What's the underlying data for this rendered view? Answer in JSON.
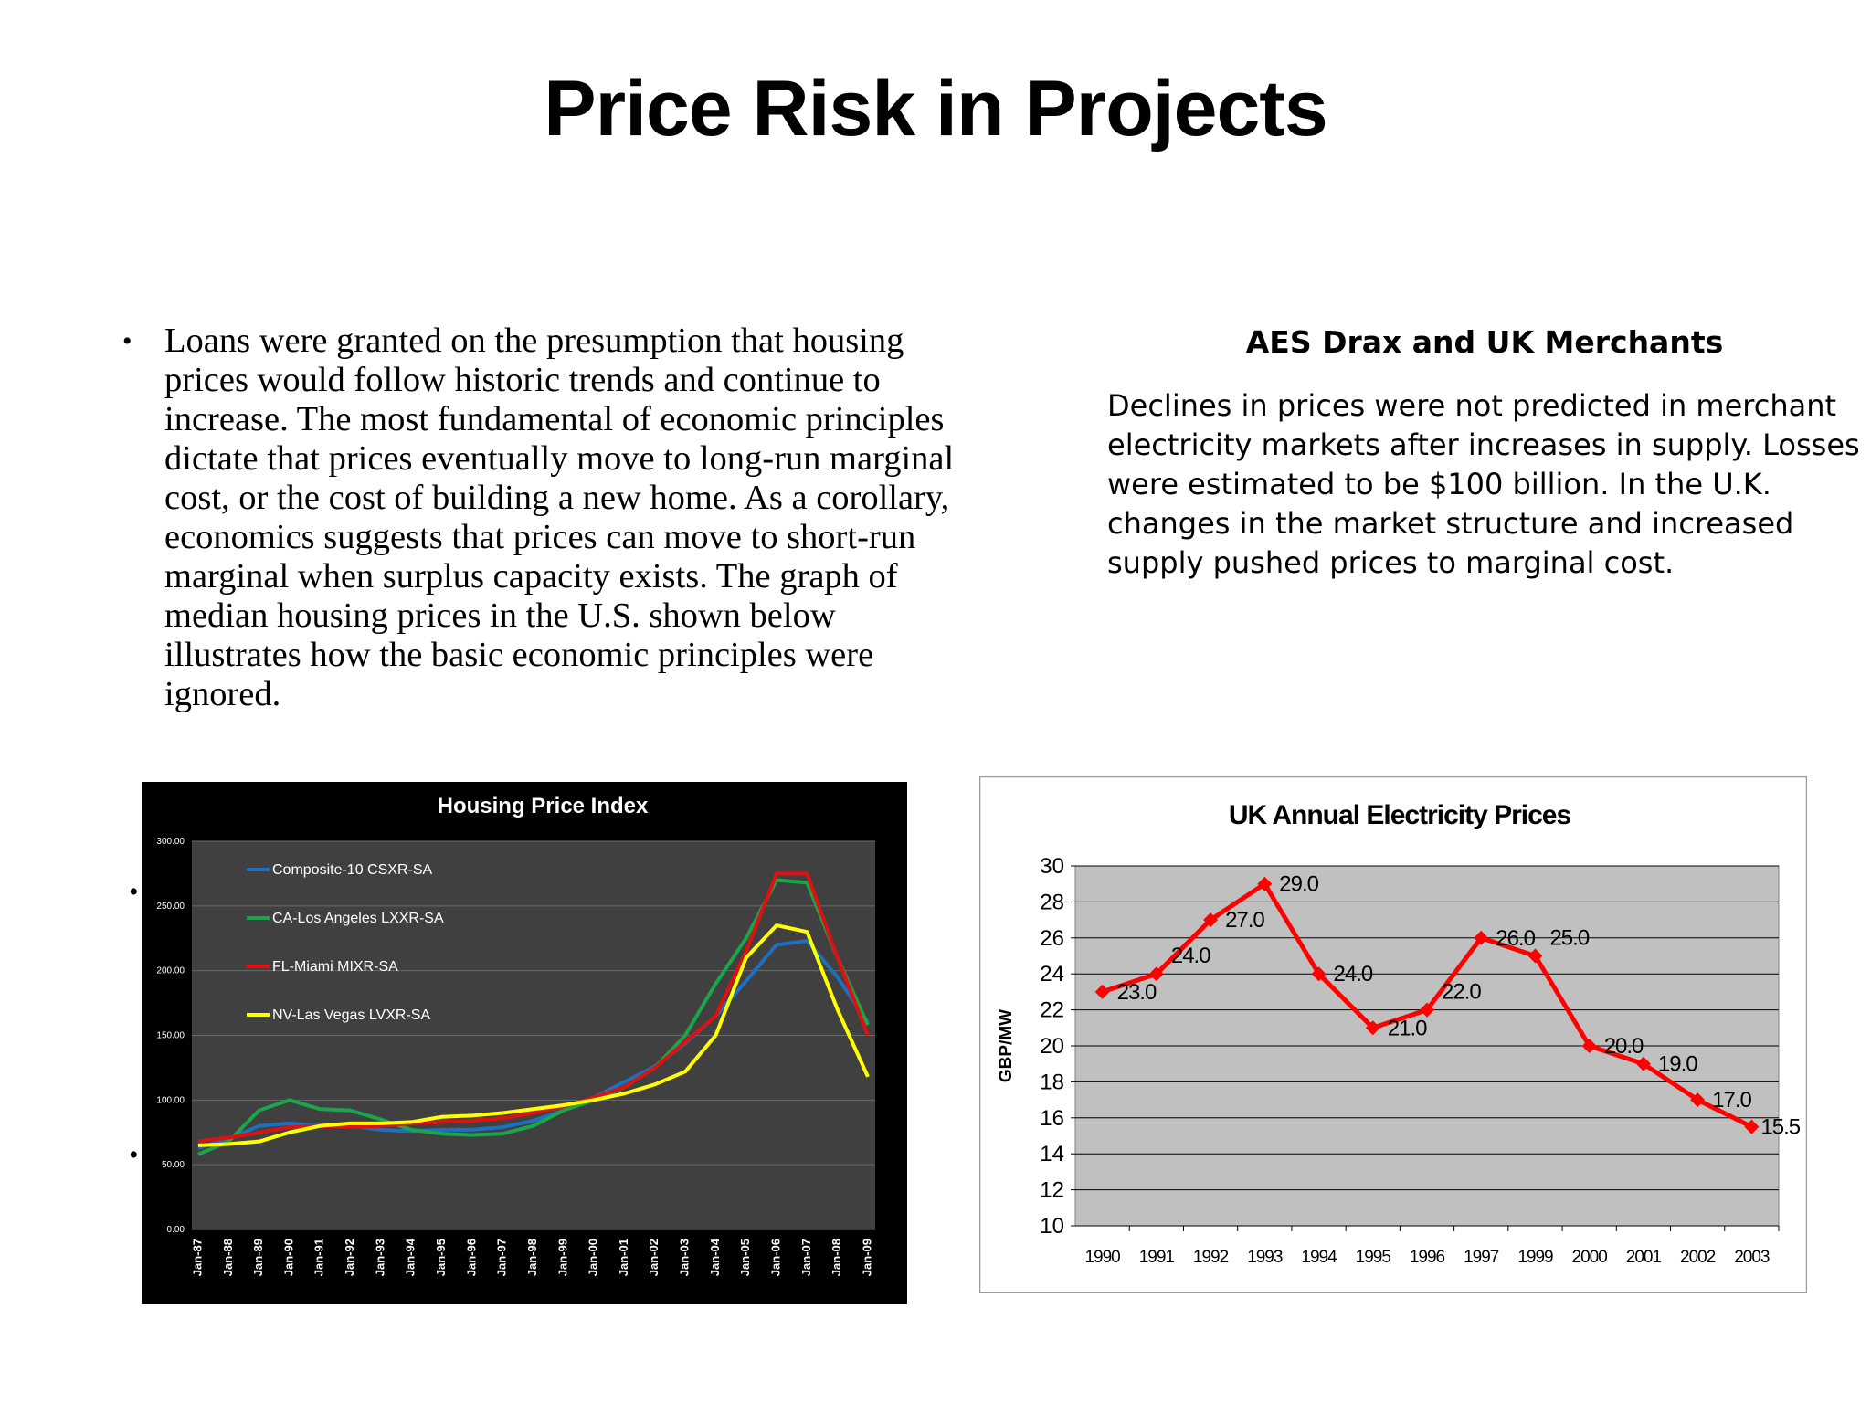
{
  "slide": {
    "title": "Price Risk in Projects"
  },
  "left": {
    "paragraph": "Loans were granted on the presumption that housing prices would follow historic trends and continue to increase.  The most fundamental of economic principles dictate that prices eventually move to long-run marginal cost, or the cost of building a new home.  As a corollary, economics suggests that prices can move to short-run marginal when surplus capacity exists.  The graph of median housing prices in the U.S. shown below illustrates how the basic economic principles were ignored.",
    "bullet": "•"
  },
  "right": {
    "heading": "AES Drax and UK Merchants",
    "paragraph": "Declines in prices were not predicted in merchant electricity markets after increases in supply. Losses were estimated to be $100 billion.  In the U.K. changes in the market structure and increased supply pushed prices to marginal cost."
  },
  "chart_data": [
    {
      "type": "line",
      "title": "Housing Price Index",
      "xlabel": "",
      "ylabel": "",
      "ylim": [
        0,
        300
      ],
      "yticks": [
        "0.00",
        "50.00",
        "100.00",
        "150.00",
        "200.00",
        "250.00",
        "300.00"
      ],
      "categories": [
        "Jan-87",
        "Jan-88",
        "Jan-89",
        "Jan-90",
        "Jan-91",
        "Jan-92",
        "Jan-93",
        "Jan-94",
        "Jan-95",
        "Jan-96",
        "Jan-97",
        "Jan-98",
        "Jan-99",
        "Jan-00",
        "Jan-01",
        "Jan-02",
        "Jan-03",
        "Jan-04",
        "Jan-05",
        "Jan-06",
        "Jan-07",
        "Jan-08",
        "Jan-09"
      ],
      "grid": true,
      "legend_position": "top-left",
      "background": "#404040",
      "series": [
        {
          "name": "Composite-10 CSXR-SA",
          "color": "#1f6fc1",
          "values": [
            63,
            70,
            80,
            82,
            80,
            80,
            77,
            76,
            77,
            77,
            79,
            84,
            92,
            102,
            114,
            126,
            144,
            165,
            192,
            220,
            223,
            195,
            160
          ]
        },
        {
          "name": "CA-Los Angeles LXXR-SA",
          "color": "#1aa54a",
          "values": [
            58,
            68,
            92,
            100,
            93,
            92,
            85,
            77,
            74,
            73,
            74,
            80,
            92,
            100,
            110,
            125,
            150,
            190,
            225,
            270,
            268,
            210,
            158
          ]
        },
        {
          "name": "FL-Miami MIXR-SA",
          "color": "#e01010",
          "values": [
            68,
            71,
            75,
            79,
            80,
            79,
            80,
            82,
            83,
            84,
            86,
            90,
            95,
            102,
            110,
            125,
            145,
            165,
            215,
            275,
            275,
            210,
            150
          ]
        },
        {
          "name": "NV-Las Vegas LVXR-SA",
          "color": "#ffff00",
          "values": [
            65,
            66,
            68,
            75,
            80,
            82,
            82,
            83,
            87,
            88,
            90,
            93,
            96,
            100,
            105,
            112,
            122,
            150,
            210,
            235,
            230,
            170,
            118
          ]
        }
      ]
    },
    {
      "type": "line",
      "title": "UK Annual Electricity Prices",
      "xlabel": "",
      "ylabel": "GBP/MW",
      "ylim": [
        10,
        30
      ],
      "yticks": [
        "10",
        "12",
        "14",
        "16",
        "18",
        "20",
        "22",
        "24",
        "26",
        "28",
        "30"
      ],
      "categories": [
        "1990",
        "1991",
        "1992",
        "1993",
        "1994",
        "1995",
        "1996",
        "1997",
        "1999",
        "2000",
        "2001",
        "2002",
        "2003"
      ],
      "grid": true,
      "legend_position": "none",
      "series": [
        {
          "color": "#ff0000",
          "values": [
            23.0,
            24.0,
            27.0,
            29.0,
            24.0,
            21.0,
            22.0,
            26.0,
            25.0,
            20.0,
            19.0,
            17.0,
            15.5
          ],
          "labels": [
            "23.0",
            "24.0",
            "27.0",
            "29.0",
            "24.0",
            "21.0",
            "22.0",
            "26.0",
            "25.0",
            "20.0",
            "19.0",
            "17.0",
            "15.5"
          ]
        }
      ]
    }
  ]
}
